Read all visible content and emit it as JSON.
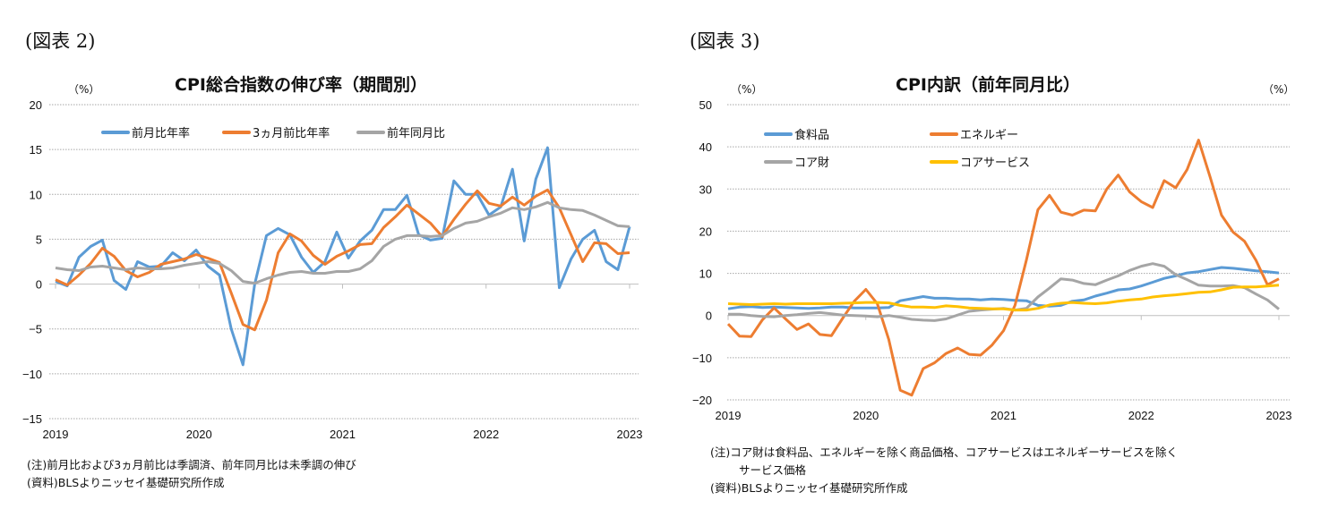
{
  "chart_data": [
    {
      "type": "line",
      "figure_label": "(図表 2)",
      "title": "CPI総合指数の伸び率（期間別）",
      "ylabel": "（%）",
      "ylim": [
        -15,
        20
      ],
      "yticks": [
        "20",
        "15",
        "10",
        "5",
        "0",
        "−5",
        "−10",
        "−15"
      ],
      "ytick_values": [
        20,
        15,
        10,
        5,
        0,
        -5,
        -10,
        -15
      ],
      "xticks": [
        "2019",
        "2020",
        "2021",
        "2022",
        "2023"
      ],
      "x_start": "2019-01",
      "x_end": "2023-01",
      "x_frequency": "monthly",
      "grid": true,
      "legend_position": "top",
      "series": [
        {
          "name": "前月比年率",
          "color": "#5b9bd5",
          "values": [
            0.3,
            -0.2,
            3.0,
            4.2,
            4.9,
            0.4,
            -0.6,
            2.5,
            1.9,
            2.0,
            3.5,
            2.6,
            3.8,
            2.0,
            1.0,
            -5.0,
            -9.0,
            0.0,
            5.4,
            6.2,
            5.5,
            3.0,
            1.3,
            2.5,
            5.8,
            2.9,
            4.8,
            6.0,
            8.3,
            8.3,
            9.9,
            5.5,
            4.9,
            5.1,
            11.5,
            10.0,
            10.0,
            7.7,
            8.6,
            12.8,
            4.8,
            11.7,
            15.2,
            -0.4,
            2.8,
            5.0,
            6.0,
            2.5,
            1.6,
            6.4
          ]
        },
        {
          "name": "3ヵ月前比年率",
          "color": "#ed7d31",
          "values": [
            0.5,
            -0.1,
            1.0,
            2.3,
            4.0,
            3.1,
            1.5,
            0.8,
            1.3,
            2.2,
            2.5,
            2.8,
            3.3,
            2.9,
            2.4,
            -1.0,
            -4.5,
            -5.1,
            -1.8,
            3.5,
            5.6,
            4.8,
            3.2,
            2.2,
            3.1,
            3.7,
            4.4,
            4.5,
            6.3,
            7.5,
            8.8,
            7.8,
            6.8,
            5.3,
            7.2,
            8.9,
            10.4,
            9.0,
            8.7,
            9.7,
            8.8,
            9.8,
            10.5,
            8.5,
            5.5,
            2.5,
            4.6,
            4.5,
            3.4,
            3.5
          ]
        },
        {
          "name": "前年同月比",
          "color": "#a5a5a5",
          "values": [
            1.8,
            1.6,
            1.5,
            1.9,
            2.0,
            1.8,
            1.6,
            1.8,
            1.7,
            1.7,
            1.8,
            2.1,
            2.3,
            2.5,
            2.3,
            1.5,
            0.3,
            0.1,
            0.6,
            1.0,
            1.3,
            1.4,
            1.2,
            1.2,
            1.4,
            1.4,
            1.7,
            2.6,
            4.2,
            5.0,
            5.4,
            5.4,
            5.3,
            5.4,
            6.2,
            6.8,
            7.0,
            7.5,
            7.9,
            8.5,
            8.3,
            8.6,
            9.1,
            8.5,
            8.3,
            8.2,
            7.7,
            7.1,
            6.5,
            6.4
          ]
        }
      ],
      "notes": [
        "(注)前月比および3ヵ月前比は季調済、前年同月比は未季調の伸び",
        "(資料)BLSよりニッセイ基礎研究所作成"
      ]
    },
    {
      "type": "line",
      "figure_label": "(図表 3)",
      "title": "CPI内訳（前年同月比）",
      "ylabel": "（%）",
      "ylabel_right": "（%）",
      "ylim": [
        -20,
        50
      ],
      "yticks": [
        "50",
        "40",
        "30",
        "20",
        "10",
        "0",
        "−10",
        "−20"
      ],
      "ytick_values": [
        50,
        40,
        30,
        20,
        10,
        0,
        -10,
        -20
      ],
      "xticks": [
        "2019",
        "2020",
        "2021",
        "2022",
        "2023"
      ],
      "x_start": "2019-01",
      "x_end": "2023-01",
      "x_frequency": "monthly",
      "grid": true,
      "legend_position": "top-left",
      "series": [
        {
          "name": "食料品",
          "color": "#5b9bd5",
          "values": [
            1.6,
            2.0,
            2.1,
            1.9,
            2.0,
            1.9,
            1.8,
            1.7,
            1.8,
            2.0,
            2.0,
            1.8,
            1.8,
            1.8,
            1.9,
            3.5,
            4.0,
            4.5,
            4.1,
            4.1,
            3.9,
            3.9,
            3.7,
            3.9,
            3.8,
            3.6,
            3.5,
            2.4,
            2.2,
            2.4,
            3.4,
            3.7,
            4.6,
            5.3,
            6.1,
            6.3,
            7.0,
            7.9,
            8.8,
            9.4,
            10.1,
            10.4,
            10.9,
            11.4,
            11.2,
            10.9,
            10.6,
            10.4,
            10.1
          ]
        },
        {
          "name": "エネルギー",
          "color": "#ed7d31",
          "values": [
            -2.0,
            -4.9,
            -5.0,
            -1.0,
            1.8,
            -0.8,
            -3.3,
            -2.0,
            -4.5,
            -4.8,
            -0.6,
            3.4,
            6.2,
            2.8,
            -5.7,
            -17.7,
            -18.9,
            -12.6,
            -11.2,
            -9.0,
            -7.7,
            -9.2,
            -9.4,
            -7.0,
            -3.6,
            2.4,
            13.2,
            25.1,
            28.5,
            24.5,
            23.8,
            25.0,
            24.8,
            30.0,
            33.3,
            29.3,
            27.0,
            25.6,
            32.0,
            30.3,
            34.6,
            41.6,
            32.9,
            23.8,
            19.8,
            17.6,
            13.1,
            7.3,
            8.7
          ]
        },
        {
          "name": "コア財",
          "color": "#a5a5a5",
          "values": [
            0.3,
            0.3,
            0.0,
            -0.2,
            -0.3,
            0.0,
            0.2,
            0.5,
            0.7,
            0.4,
            0.1,
            0.0,
            -0.1,
            -0.3,
            0.0,
            -0.4,
            -0.9,
            -1.1,
            -1.2,
            -0.8,
            0.1,
            1.0,
            1.3,
            1.5,
            1.7,
            1.3,
            1.7,
            4.4,
            6.5,
            8.7,
            8.4,
            7.6,
            7.3,
            8.4,
            9.4,
            10.7,
            11.7,
            12.3,
            11.7,
            9.7,
            8.5,
            7.2,
            7.0,
            7.0,
            7.1,
            6.6,
            5.1,
            3.7,
            1.5
          ]
        },
        {
          "name": "コアサービス",
          "color": "#ffc000",
          "values": [
            2.8,
            2.7,
            2.6,
            2.7,
            2.8,
            2.7,
            2.8,
            2.8,
            2.8,
            2.8,
            2.9,
            3.0,
            3.1,
            3.1,
            3.0,
            2.4,
            2.0,
            2.0,
            1.9,
            2.3,
            2.1,
            1.8,
            1.7,
            1.6,
            1.6,
            1.3,
            1.3,
            1.7,
            2.5,
            2.9,
            3.1,
            2.9,
            2.8,
            3.0,
            3.4,
            3.7,
            3.9,
            4.4,
            4.7,
            4.9,
            5.2,
            5.5,
            5.6,
            6.1,
            6.7,
            6.8,
            6.8,
            7.0,
            7.2
          ]
        }
      ],
      "notes": [
        "(注)コア財は食料品、エネルギーを除く商品価格、コアサービスはエネルギーサービスを除く",
        "サービス価格",
        "(資料)BLSよりニッセイ基礎研究所作成"
      ]
    }
  ]
}
